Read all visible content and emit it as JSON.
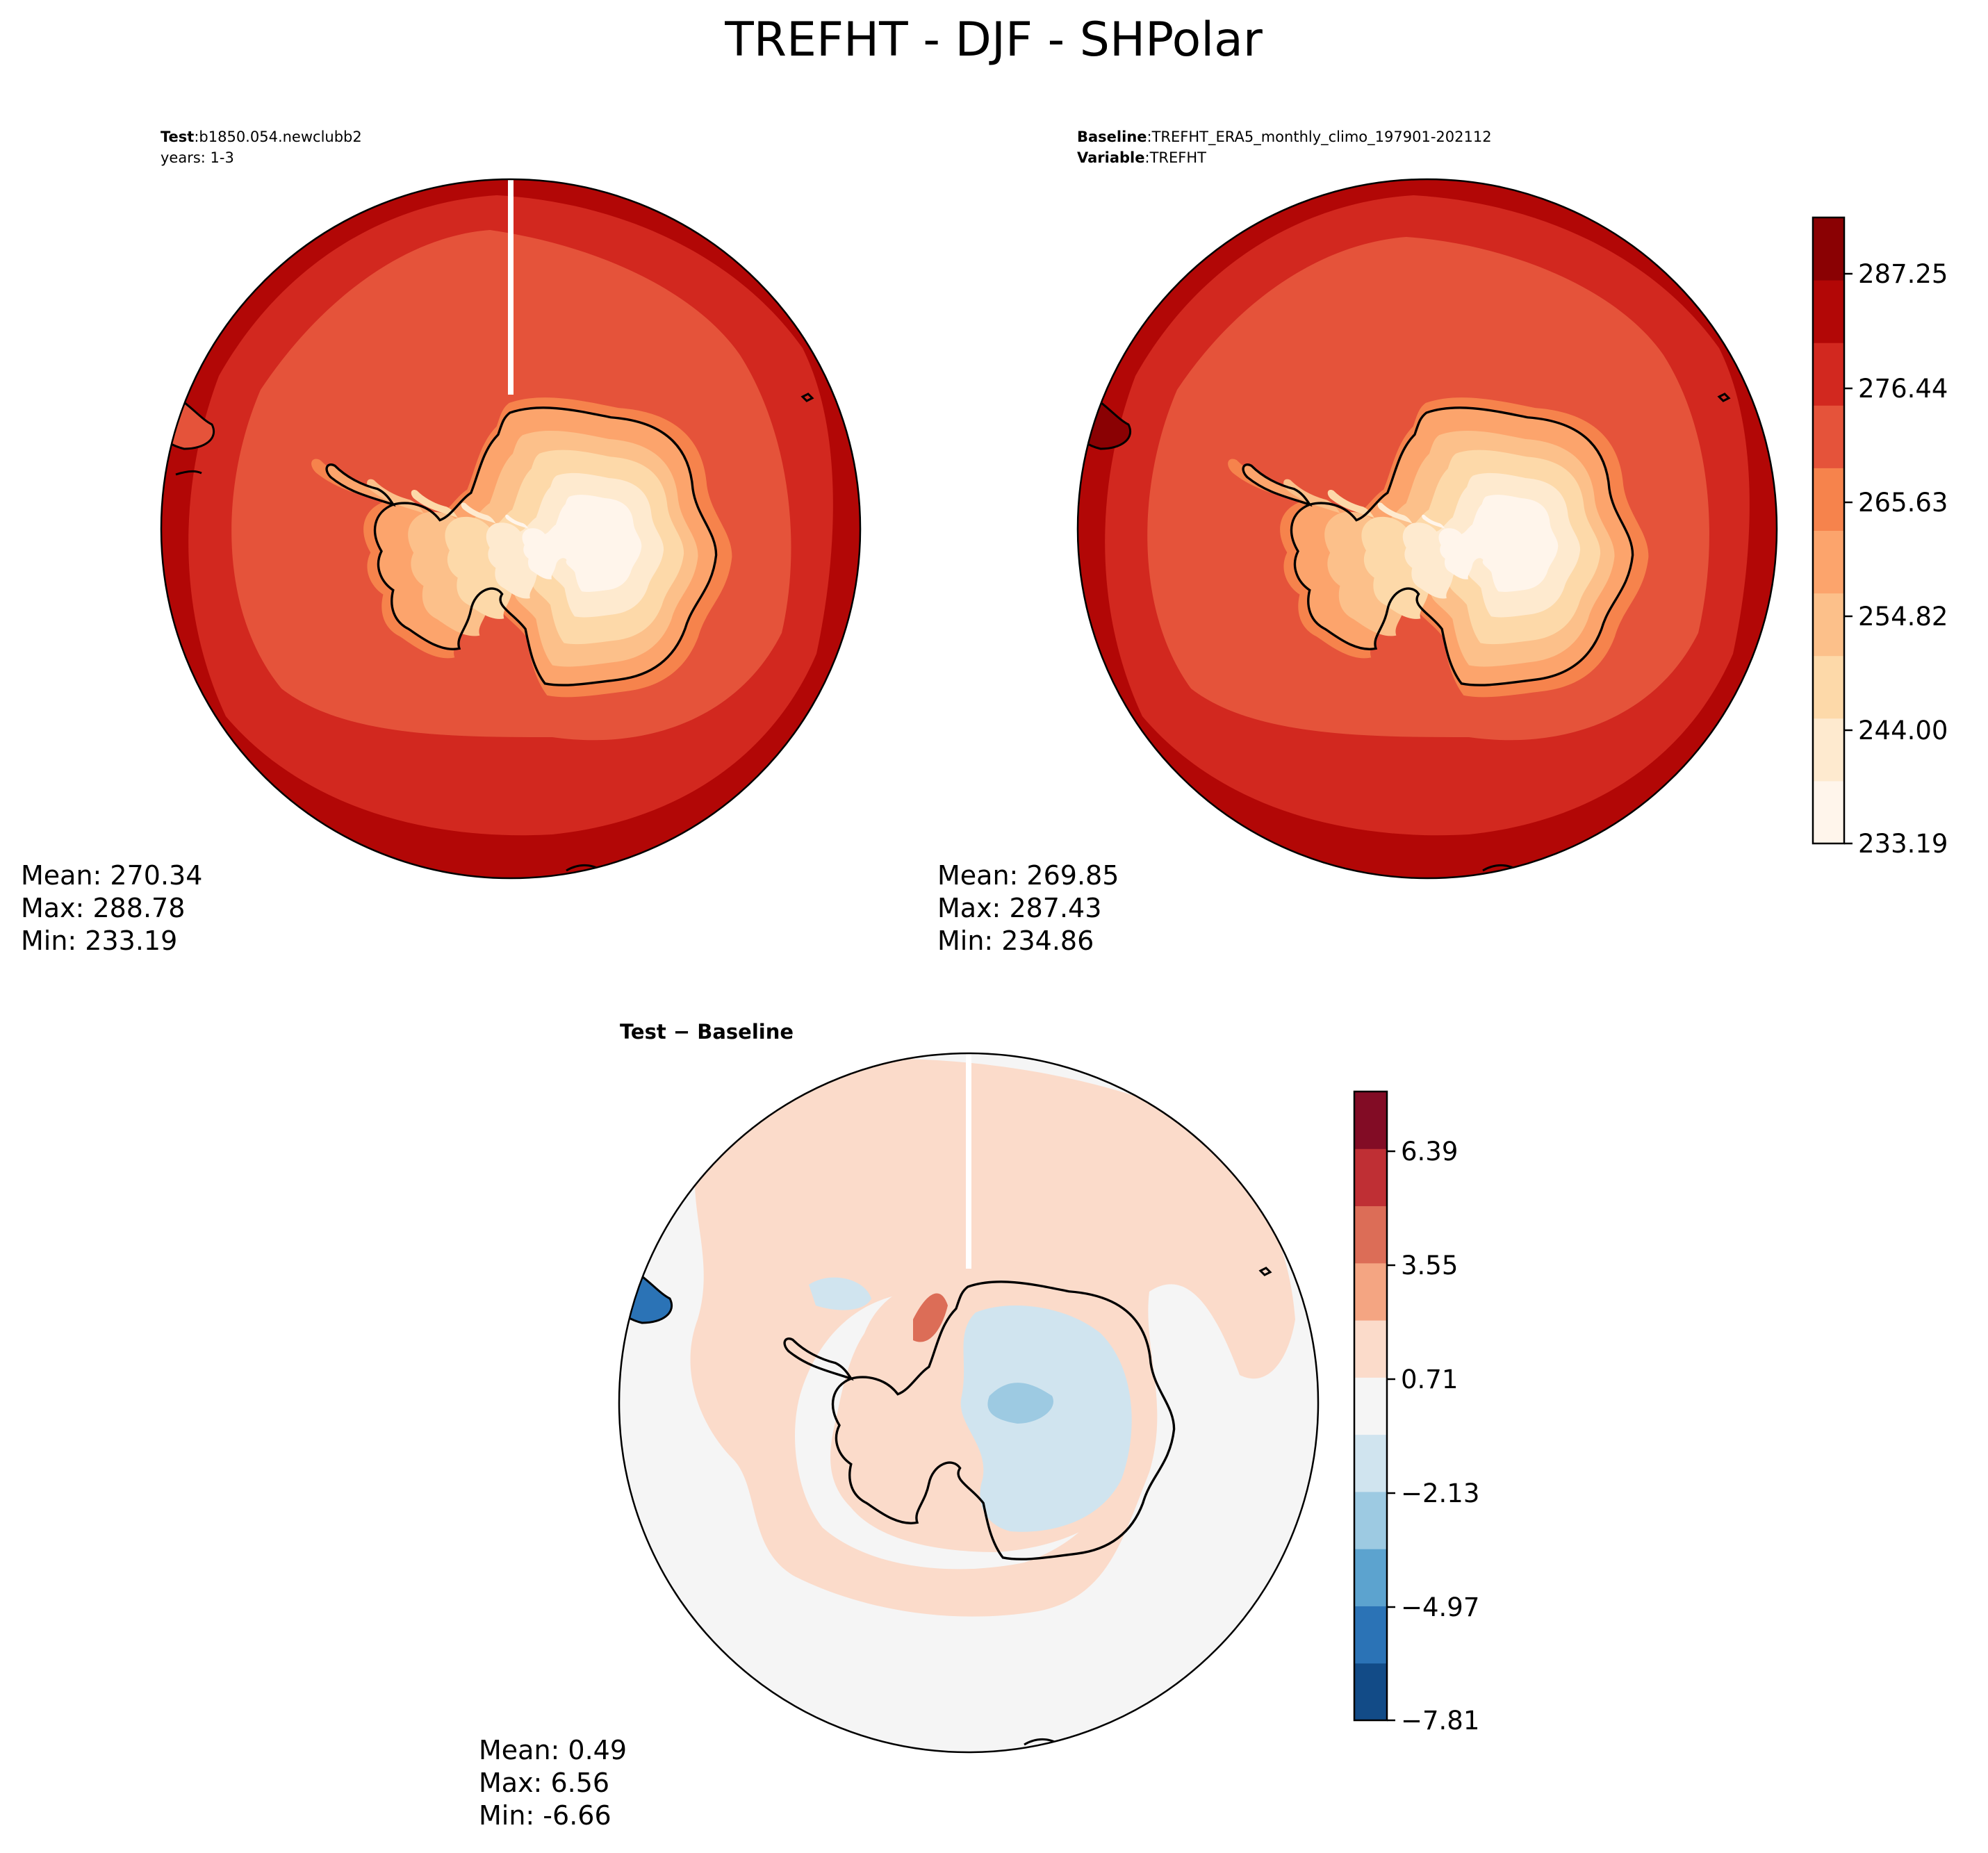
{
  "figure": {
    "title": "TREFHT - DJF - SHPolar"
  },
  "panels": {
    "test": {
      "label_bold": "Test",
      "label_sep": ":",
      "label_value": "b1850.054.newclubb2",
      "line2": "years: 1-3",
      "stats": {
        "mean": "Mean: 270.34",
        "max": "Max: 288.78",
        "min": "Min: 233.19"
      }
    },
    "baseline": {
      "label_bold": "Baseline",
      "label_sep": ":",
      "label_value": "TREFHT_ERA5_monthly_climo_197901-202112",
      "line2_bold": "Variable",
      "line2_value": "TREFHT",
      "stats": {
        "mean": "Mean: 269.85",
        "max": "Max: 287.43",
        "min": "Min: 234.86"
      }
    },
    "diff": {
      "title": "Test − Baseline",
      "stats": {
        "mean": "Mean:  0.49",
        "max": "Max:  6.56",
        "min": "Min: -6.66"
      }
    }
  },
  "colorbars": {
    "absolute": {
      "ticks": [
        "287.25",
        "276.44",
        "265.63",
        "254.82",
        "244.00",
        "233.19"
      ],
      "colors": [
        "#fff5eb",
        "#feeacf",
        "#fdd9a9",
        "#fcc08a",
        "#fca46c",
        "#f6834c",
        "#e5533a",
        "#d2281f",
        "#b20706",
        "#8a0103"
      ]
    },
    "difference": {
      "ticks": [
        "6.39",
        "3.55",
        "0.71",
        "−2.13",
        "−4.97",
        "−7.81"
      ],
      "colors": [
        "#124b87",
        "#2b73b6",
        "#5ca3cf",
        "#9dcae2",
        "#d0e4ef",
        "#f5f5f5",
        "#fbdbca",
        "#f4a582",
        "#dc6d57",
        "#bf2f34",
        "#820c25"
      ]
    }
  },
  "map_colors": {
    "outer": "#b20706",
    "ring2": "#d2281f",
    "ring3": "#e5533a",
    "coast_band": "#f6834c",
    "coast_band2": "#fca46c",
    "interior1": "#fcc08a",
    "interior2": "#fdd9a9",
    "interior3": "#feeacf",
    "interior4": "#fff5eb",
    "diff_base": "#f5f5f5",
    "diff_pos": "#fbdbca",
    "diff_neg": "#d0e4ef",
    "diff_neg2": "#9dcae2",
    "diff_strong_pos": "#dc6d57",
    "diff_strong_neg": "#2b73b6"
  }
}
